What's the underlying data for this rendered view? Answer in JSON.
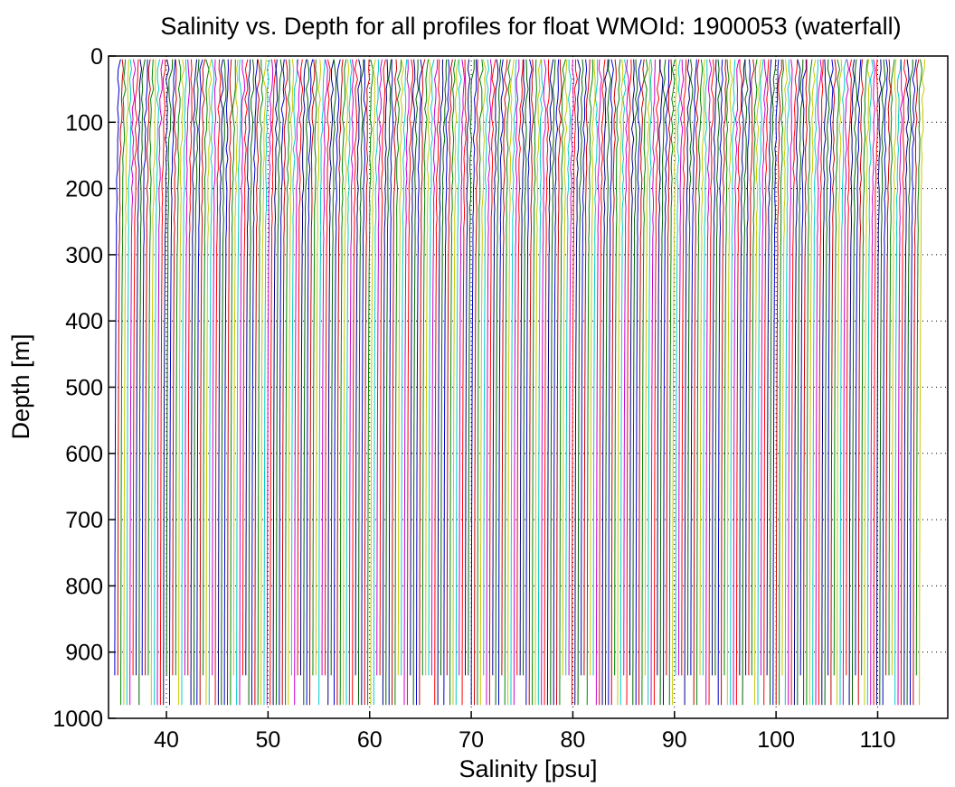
{
  "chart_data": {
    "type": "line",
    "title": "Salinity vs. Depth for all profiles for float WMOId: 1900053 (waterfall)",
    "xlabel": "Salinity [psu]",
    "ylabel": "Depth [m]",
    "xlim": [
      34.3,
      116.9
    ],
    "ylim": [
      0,
      1000
    ],
    "y_inverted": true,
    "grid": "dotted",
    "x_ticks": [
      40,
      50,
      60,
      70,
      80,
      90,
      100,
      110
    ],
    "y_ticks": [
      0,
      100,
      200,
      300,
      400,
      500,
      600,
      700,
      800,
      900,
      1000
    ],
    "profile_count": 265,
    "profile_offset_psu": 0.3,
    "base_salinity": 35.0,
    "profile_depth_range": [
      5,
      990
    ],
    "series_colors": [
      "#0000cc",
      "#cc0000",
      "#008800",
      "#c8c800",
      "#00cccc",
      "#cc00cc",
      "#ff0000",
      "#000080",
      "#006400"
    ]
  }
}
